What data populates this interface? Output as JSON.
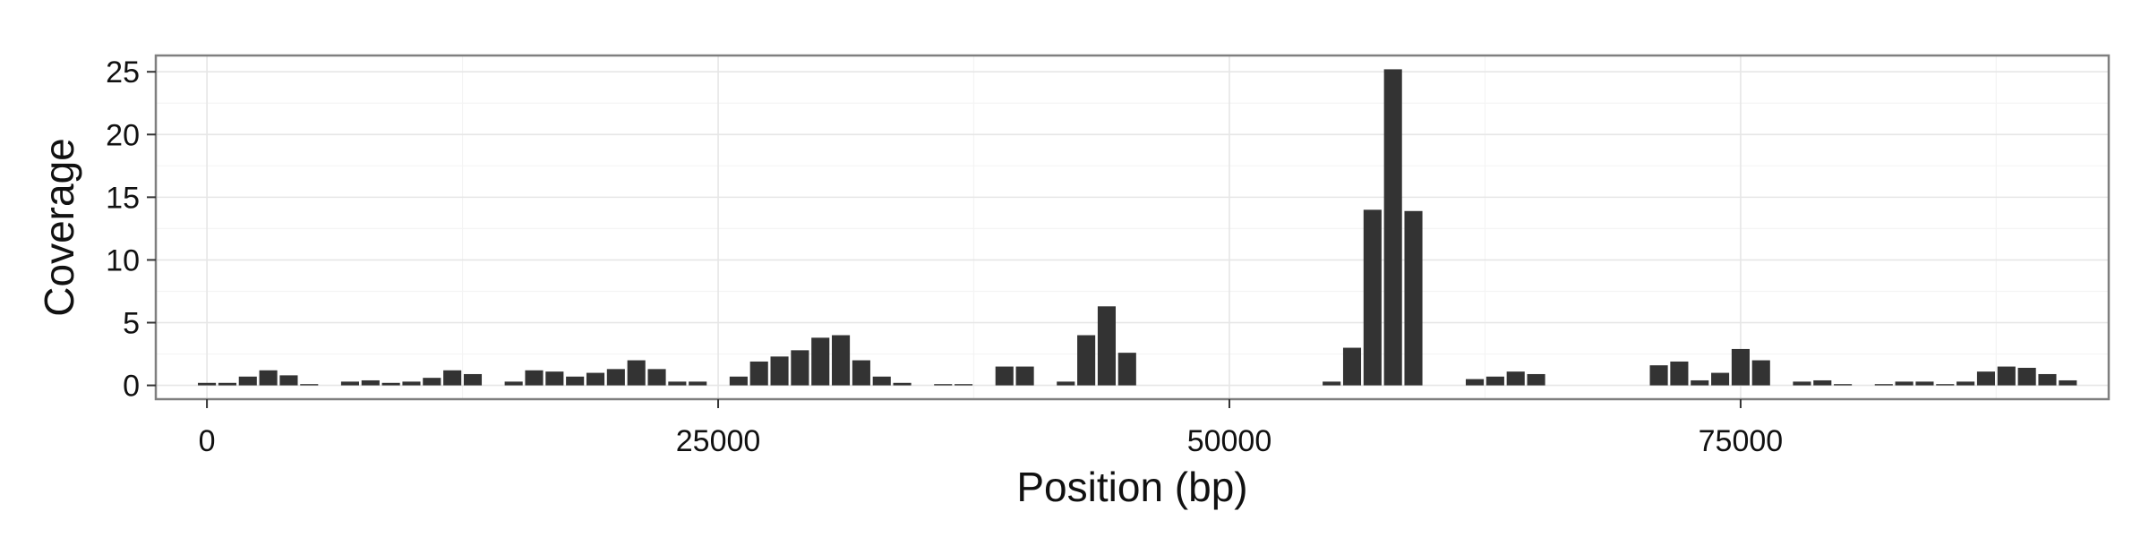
{
  "chart_data": {
    "type": "bar",
    "title": "",
    "xlabel": "Position (bp)",
    "ylabel": "Coverage",
    "xlim": [
      -2500,
      93000
    ],
    "ylim": [
      -1.1,
      26.3
    ],
    "xticks": [
      0,
      25000,
      50000,
      75000
    ],
    "xtick_labels": [
      "0",
      "25000",
      "50000",
      "75000"
    ],
    "yticks": [
      0,
      5,
      10,
      15,
      20,
      25
    ],
    "ytick_labels": [
      "0",
      "5",
      "10",
      "15",
      "20",
      "25"
    ],
    "bin_width": 1000,
    "grid": true,
    "legend": "none",
    "colors": {
      "bar": "#333333",
      "panel_border": "#7f7f7f",
      "grid_major": "#e6e6e6",
      "grid_minor": "#f4f4f4"
    },
    "series": [
      {
        "x": [
          0,
          1000,
          2000,
          3000,
          4000,
          5000,
          6000,
          7000,
          8000,
          9000,
          10000,
          11000,
          12000,
          13000,
          14000,
          15000,
          16000,
          17000,
          18000,
          19000,
          20000,
          21000,
          22000,
          23000,
          24000,
          25000,
          26000,
          27000,
          28000,
          29000,
          30000,
          31000,
          32000,
          33000,
          34000,
          35000,
          36000,
          37000,
          38000,
          39000,
          40000,
          41000,
          42000,
          43000,
          44000,
          45000,
          46000,
          47000,
          48000,
          49000,
          50000,
          51000,
          52000,
          53000,
          54000,
          55000,
          56000,
          57000,
          58000,
          59000,
          60000,
          61000,
          62000,
          63000,
          64000,
          65000,
          66000,
          67000,
          68000,
          69000,
          70000,
          71000,
          72000,
          73000,
          74000,
          75000,
          76000,
          77000,
          78000,
          79000,
          80000,
          81000,
          82000,
          83000,
          84000,
          85000,
          86000,
          87000,
          88000,
          89000,
          90000,
          91000,
          92000
        ],
        "values": [
          0.2,
          0.2,
          0.7,
          1.2,
          0.8,
          0.1,
          0,
          0.3,
          0.4,
          0.2,
          0.3,
          0.6,
          1.2,
          0.9,
          0,
          0.3,
          1.2,
          1.1,
          0.7,
          1.0,
          1.3,
          2.0,
          1.3,
          0.3,
          0.3,
          0,
          0.7,
          1.9,
          2.3,
          2.8,
          3.8,
          4.0,
          2.0,
          0.7,
          0.2,
          0,
          0.1,
          0.1,
          0,
          1.5,
          1.5,
          0,
          0.3,
          4.0,
          6.3,
          2.6,
          0,
          0,
          0,
          0,
          0,
          0,
          0,
          0,
          0,
          0.3,
          3.0,
          14.0,
          25.2,
          13.9,
          0,
          0,
          0.5,
          0.7,
          1.1,
          0.9,
          0,
          0,
          0,
          0,
          0,
          1.6,
          1.9,
          0.4,
          1.0,
          2.9,
          2.0,
          0,
          0.3,
          0.4,
          0.1,
          0,
          0.1,
          0.3,
          0.3,
          0.1,
          0.3,
          1.1,
          1.5,
          1.4,
          0.9,
          0.4,
          0
        ]
      }
    ]
  }
}
